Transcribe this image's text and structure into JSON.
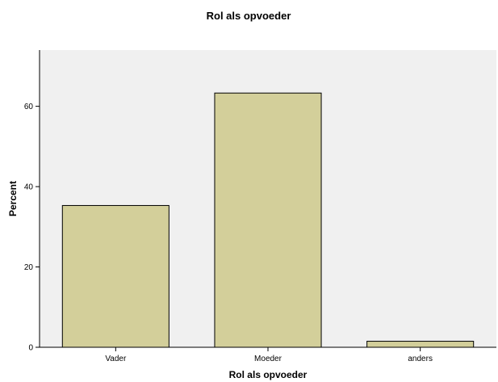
{
  "chart_data": {
    "type": "bar",
    "title": "Rol als opvoeder",
    "xlabel": "Rol als opvoeder",
    "ylabel": "Percent",
    "categories": [
      "Vader",
      "Moeder",
      "anders"
    ],
    "values": [
      35.3,
      63.3,
      1.5
    ],
    "ylim": [
      0,
      74
    ],
    "yticks": [
      0,
      20,
      40,
      60
    ],
    "grid": false,
    "legend": "none",
    "colors": {
      "bar_fill": "#d3cf9a",
      "bar_stroke": "#000000",
      "plot_background": "#f0f0f0"
    }
  }
}
